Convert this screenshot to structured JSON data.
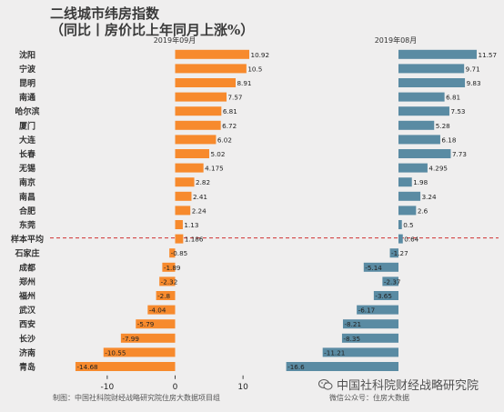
{
  "title": "二线城市纬房指数",
  "subtitle": "（同比丨房价比上年同月上涨%）",
  "footer_left": "制图：中国社科院财经战略研究院住房大数据项目组",
  "footer_right": "微信公众号：住房大数据",
  "watermark": "中国社科院财经战略研究院",
  "colors": {
    "left_bar": "#f78a2d",
    "right_bar": "#5a8ba3",
    "background": "#efeeee",
    "ref_line": "#d03030"
  },
  "chart_data": [
    {
      "type": "bar",
      "orientation": "horizontal",
      "title": "2019年09月",
      "categories": [
        "沈阳",
        "宁波",
        "昆明",
        "南通",
        "哈尔滨",
        "厦门",
        "大连",
        "长春",
        "无锡",
        "南京",
        "南昌",
        "合肥",
        "东莞",
        "样本平均",
        "石家庄",
        "成都",
        "郑州",
        "福州",
        "武汉",
        "西安",
        "长沙",
        "济南",
        "青岛"
      ],
      "value_labels": [
        "10.92",
        "10.5",
        "8.91",
        "7.57",
        "6.81",
        "6.72",
        "6.02",
        "5.02",
        "4.175",
        "2.82",
        "2.41",
        "2.24",
        "1.13",
        "1.186",
        "-0.85",
        "-1.89",
        "-2.32",
        "-2.8",
        "-4.04",
        "-5.79",
        "-7.99",
        "-10.55",
        "-14.68"
      ],
      "values": [
        10.92,
        10.5,
        8.91,
        7.57,
        6.81,
        6.72,
        6.02,
        5.02,
        4.175,
        2.82,
        2.41,
        2.24,
        1.13,
        1.186,
        -0.85,
        -1.89,
        -2.32,
        -2.8,
        -4.04,
        -5.79,
        -7.99,
        -10.55,
        -14.68
      ],
      "xlim": [
        -16,
        12
      ],
      "xticks": [
        -10,
        0,
        10
      ],
      "xtick_labels": [
        "-10",
        "0",
        "10"
      ]
    },
    {
      "type": "bar",
      "orientation": "horizontal",
      "title": "2019年08月",
      "categories": [
        "沈阳",
        "宁波",
        "昆明",
        "南通",
        "哈尔滨",
        "厦门",
        "大连",
        "长春",
        "无锡",
        "南京",
        "南昌",
        "合肥",
        "东莞",
        "样本平均",
        "石家庄",
        "成都",
        "郑州",
        "福州",
        "武汉",
        "西安",
        "长沙",
        "济南",
        "青岛"
      ],
      "value_labels": [
        "11.57",
        "9.71",
        "9.83",
        "6.81",
        "7.53",
        "5.28",
        "6.18",
        "7.73",
        "4.295",
        "1.98",
        "3.24",
        "2.6",
        "0.5",
        "0.64",
        "-1.27",
        "-5.14",
        "-2.37",
        "-3.65",
        "-6.17",
        "-8.21",
        "-8.35",
        "-11.21",
        "-16.6"
      ],
      "values": [
        11.57,
        9.71,
        9.83,
        6.81,
        7.53,
        5.28,
        6.18,
        7.73,
        4.295,
        1.98,
        3.24,
        2.6,
        0.5,
        0.64,
        -1.27,
        -5.14,
        -2.37,
        -3.65,
        -6.17,
        -8.21,
        -8.35,
        -11.21,
        -16.6
      ],
      "xlim": [
        -17.5,
        12.5
      ],
      "xticks": [],
      "xtick_labels": []
    }
  ]
}
